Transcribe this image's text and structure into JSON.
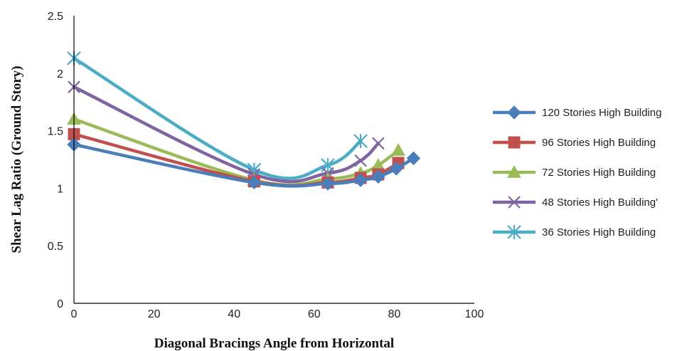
{
  "chart_data": {
    "type": "line",
    "title": "",
    "xlabel": "Diagonal Bracings Angle from Horizontal",
    "ylabel": "Shear Lag Ratio (Ground Story)",
    "xlim": [
      0,
      100
    ],
    "ylim": [
      0,
      2.5
    ],
    "xticks": [
      "0",
      "20",
      "40",
      "60",
      "80",
      "100"
    ],
    "yticks": [
      "0",
      "0.5",
      "1",
      "1.5",
      "2",
      "2.5"
    ],
    "grid": false,
    "smooth": true,
    "legend_position": "right",
    "series": [
      {
        "name": "120 Stories High Building",
        "color": "#4A7EBB",
        "marker": "diamond",
        "x": [
          0,
          45,
          63.4,
          71.6,
          76,
          80.5,
          84.8
        ],
        "y": [
          1.38,
          1.05,
          1.04,
          1.07,
          1.1,
          1.17,
          1.26
        ]
      },
      {
        "name": "96 Stories High Building",
        "color": "#C0504D",
        "marker": "square",
        "x": [
          0,
          45,
          63.4,
          71.6,
          76,
          81
        ],
        "y": [
          1.47,
          1.06,
          1.05,
          1.09,
          1.12,
          1.22
        ]
      },
      {
        "name": "72 Stories High Building",
        "color": "#9BBB59",
        "marker": "triangle",
        "x": [
          0,
          45,
          63.4,
          71.6,
          76,
          81
        ],
        "y": [
          1.6,
          1.07,
          1.08,
          1.13,
          1.2,
          1.33
        ]
      },
      {
        "name": "48 Stories High Building'",
        "color": "#8064A2",
        "marker": "x",
        "x": [
          0,
          45,
          63.4,
          71.6,
          76
        ],
        "y": [
          1.88,
          1.12,
          1.13,
          1.24,
          1.39
        ]
      },
      {
        "name": "36 Stories High Building",
        "color": "#4BACC6",
        "marker": "asterisk",
        "x": [
          0,
          45,
          63.4,
          71.6
        ],
        "y": [
          2.13,
          1.16,
          1.2,
          1.41
        ]
      }
    ]
  }
}
